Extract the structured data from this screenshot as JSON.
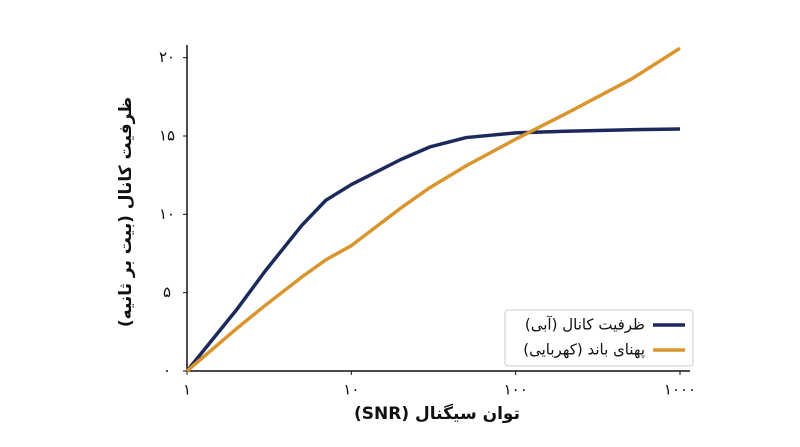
{
  "chart_data": {
    "type": "line",
    "x_label": "توان سیگنال (SNR)",
    "y_label": "ظرفیت کانال (بیت بر ثانیه)",
    "x": [
      1,
      2,
      3,
      5,
      7,
      10,
      20,
      30,
      50,
      100,
      200,
      500,
      1000
    ],
    "series": [
      {
        "name": "ظرفیت کانال (آبی)",
        "color": "#1b2a5a",
        "values": [
          0,
          3.9,
          6.4,
          9.3,
          10.9,
          11.9,
          13.5,
          14.3,
          14.9,
          15.2,
          15.3,
          15.4,
          15.45
        ]
      },
      {
        "name": "پهنای باند (کهربایی)",
        "color": "#d9962e",
        "values": [
          0,
          2.7,
          4.2,
          6.0,
          7.1,
          8.0,
          10.4,
          11.7,
          13.1,
          14.8,
          16.4,
          18.6,
          20.6
        ]
      }
    ],
    "xscale": "log",
    "xlim": [
      1,
      1000
    ],
    "xticks": [
      {
        "value": 1,
        "label": "۱"
      },
      {
        "value": 10,
        "label": "۱۰"
      },
      {
        "value": 100,
        "label": "۱۰۰"
      },
      {
        "value": 1000,
        "label": "۱۰۰۰"
      }
    ],
    "ylim": [
      0,
      21
    ],
    "yticks": [
      {
        "value": 0,
        "label": "۰"
      },
      {
        "value": 5,
        "label": "۵"
      },
      {
        "value": 10,
        "label": "۱۰"
      },
      {
        "value": 15,
        "label": "۱۵"
      },
      {
        "value": 20,
        "label": "۲۰"
      }
    ],
    "legend": "lower right"
  }
}
